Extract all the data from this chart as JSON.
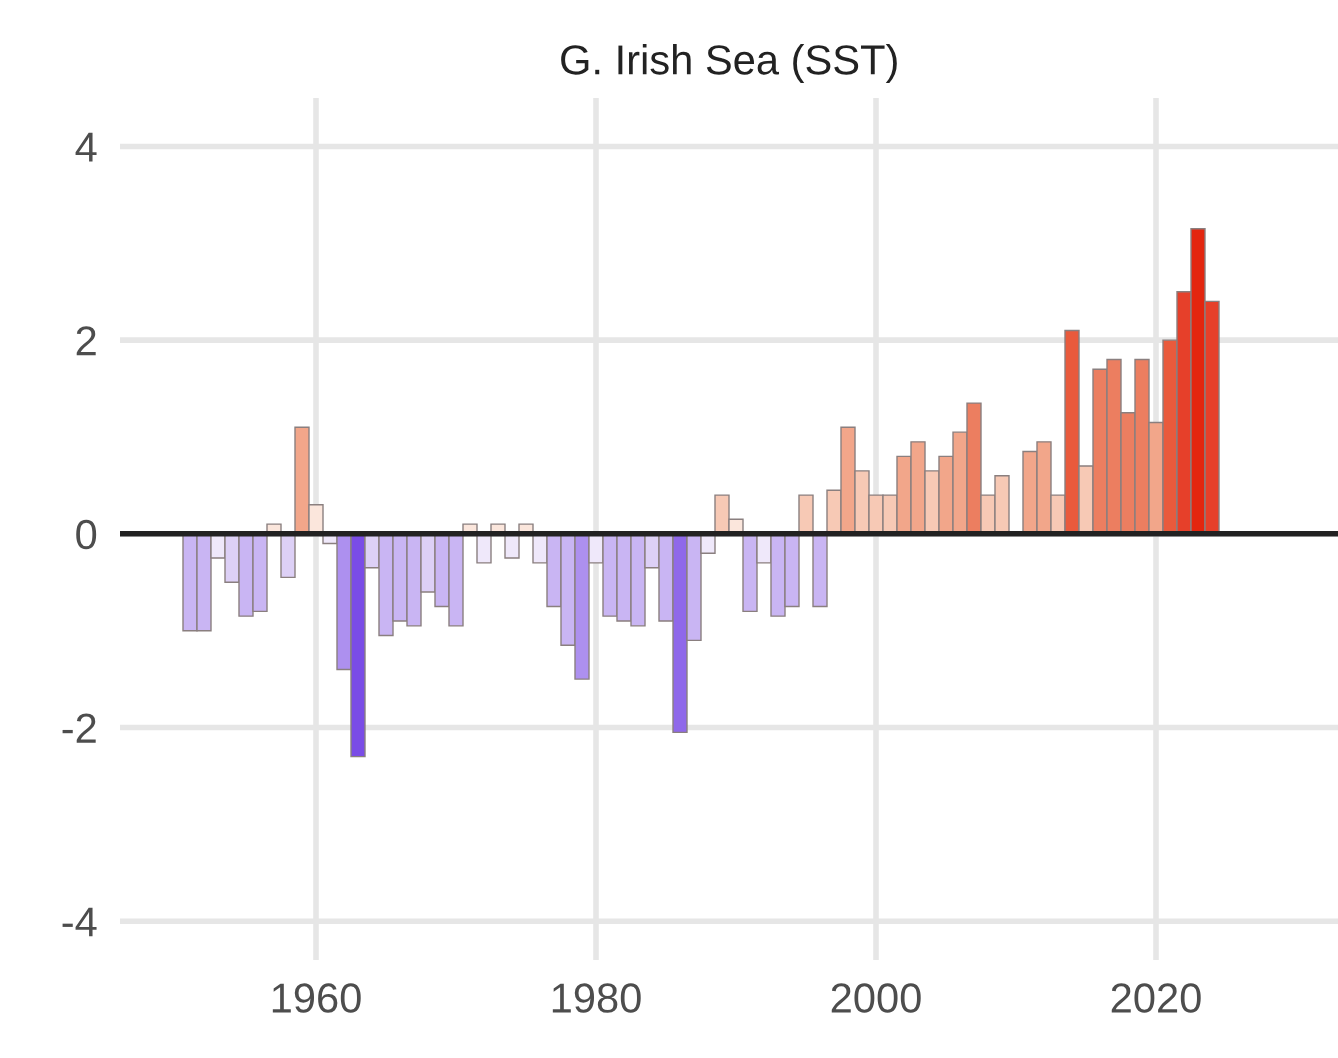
{
  "chart_data": {
    "type": "bar",
    "title": "G. Irish Sea (SST)",
    "x": [
      1951,
      1952,
      1953,
      1954,
      1955,
      1956,
      1957,
      1958,
      1959,
      1960,
      1961,
      1962,
      1963,
      1964,
      1965,
      1966,
      1967,
      1968,
      1969,
      1970,
      1971,
      1972,
      1973,
      1974,
      1975,
      1976,
      1977,
      1978,
      1979,
      1980,
      1981,
      1982,
      1983,
      1984,
      1985,
      1986,
      1987,
      1988,
      1989,
      1990,
      1991,
      1992,
      1993,
      1994,
      1995,
      1996,
      1997,
      1998,
      1999,
      2000,
      2001,
      2002,
      2003,
      2004,
      2005,
      2006,
      2007,
      2008,
      2009,
      2010,
      2011,
      2012,
      2013,
      2014,
      2015,
      2016,
      2017,
      2018,
      2019,
      2020,
      2021,
      2022,
      2023,
      2024
    ],
    "values": [
      -1.0,
      -1.0,
      -0.25,
      -0.5,
      -0.85,
      -0.8,
      0.1,
      -0.45,
      1.1,
      0.3,
      -0.1,
      -1.4,
      -2.3,
      -0.35,
      -1.05,
      -0.9,
      -0.95,
      -0.6,
      -0.75,
      -0.95,
      0.1,
      -0.3,
      0.1,
      -0.25,
      0.1,
      -0.3,
      -0.75,
      -1.15,
      -1.5,
      -0.3,
      -0.85,
      -0.9,
      -0.95,
      -0.35,
      -0.9,
      -2.05,
      -1.1,
      -0.2,
      0.4,
      0.15,
      -0.8,
      -0.3,
      -0.85,
      -0.75,
      0.4,
      -0.75,
      0.45,
      1.1,
      0.65,
      0.4,
      0.4,
      0.8,
      0.95,
      0.65,
      0.8,
      1.05,
      1.35,
      0.4,
      0.6,
      null,
      0.85,
      0.95,
      0.4,
      2.1,
      0.7,
      1.7,
      1.8,
      1.25,
      1.8,
      1.15,
      2.0,
      2.5,
      3.15,
      2.4
    ],
    "colors": [
      "#c9b5f3",
      "#c9b5f3",
      "#efe8fa",
      "#ddd0f6",
      "#c9b5f3",
      "#c9b5f3",
      "#fbe6dc",
      "#ddd0f6",
      "#f2a68a",
      "#fbe6dc",
      "#efe8fa",
      "#ad90ef",
      "#7a4ce6",
      "#ddd0f6",
      "#c9b5f3",
      "#c9b5f3",
      "#c9b5f3",
      "#ddd0f6",
      "#c9b5f3",
      "#c9b5f3",
      "#fbe6dc",
      "#efe8fa",
      "#fbe6dc",
      "#efe8fa",
      "#fbe6dc",
      "#efe8fa",
      "#c9b5f3",
      "#c9b5f3",
      "#ad90ef",
      "#efe8fa",
      "#c9b5f3",
      "#c9b5f3",
      "#c9b5f3",
      "#ddd0f6",
      "#c9b5f3",
      "#8f68ea",
      "#c9b5f3",
      "#efe8fa",
      "#f7c9b5",
      "#fbe6dc",
      "#c9b5f3",
      "#efe8fa",
      "#c9b5f3",
      "#c9b5f3",
      "#f7c9b5",
      "#c9b5f3",
      "#f7c9b5",
      "#f2a68a",
      "#f7c9b5",
      "#f7c9b5",
      "#f7c9b5",
      "#f2a68a",
      "#f2a68a",
      "#f7c9b5",
      "#f2a68a",
      "#f2a68a",
      "#ec7e60",
      "#f7c9b5",
      "#f7c9b5",
      "#efe8fa",
      "#f2a68a",
      "#f2a68a",
      "#f7c9b5",
      "#e95a3c",
      "#f7c9b5",
      "#ec7e60",
      "#ec7e60",
      "#ec7e60",
      "#ec7e60",
      "#f2a68a",
      "#e95a3c",
      "#e6402a",
      "#e3260f",
      "#e6402a"
    ],
    "xlim": [
      1946,
      2033
    ],
    "xticks": [
      1960,
      1980,
      2000,
      2020
    ],
    "ylim": [
      -4.4,
      4.5
    ],
    "yticks": [
      -4,
      -2,
      0,
      2,
      4
    ],
    "grid": true,
    "ref_lines": [
      {
        "axis": "y",
        "value": 0,
        "color": "#222222"
      }
    ]
  }
}
